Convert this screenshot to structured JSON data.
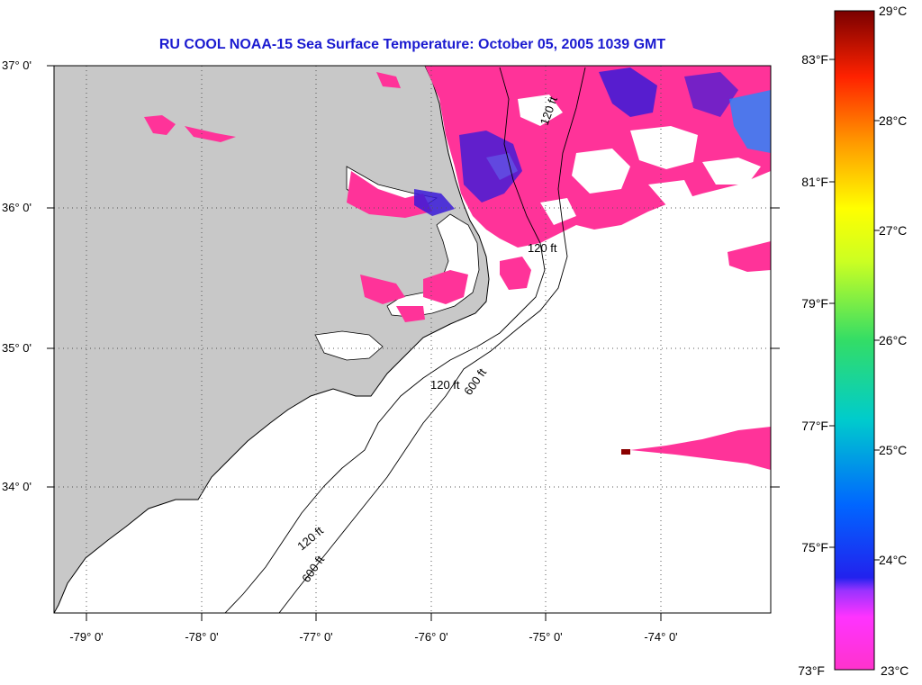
{
  "title": "RU COOL  NOAA-15  Sea Surface Temperature:  October 05, 2005 1039 GMT",
  "map": {
    "lat_labels": [
      "37° 0'",
      "36° 0'",
      "35° 0'",
      "34° 0'"
    ],
    "lon_labels": [
      "-79° 0'",
      "-78° 0'",
      "-77° 0'",
      "-76° 0'",
      "-75° 0'",
      "-74° 0'"
    ],
    "contour_labels": [
      "120 ft",
      "600 ft"
    ],
    "land_color": "#c8c8c8",
    "sst_color_warm": "#ff3399",
    "sst_color_cool": "#3a1ad8"
  },
  "colorbar": {
    "celsius": [
      "29°C",
      "28°C",
      "27°C",
      "26°C",
      "25°C",
      "24°C",
      "23°C"
    ],
    "fahrenheit": [
      "83°F",
      "81°F",
      "79°F",
      "77°F",
      "75°F",
      "73°F"
    ]
  }
}
